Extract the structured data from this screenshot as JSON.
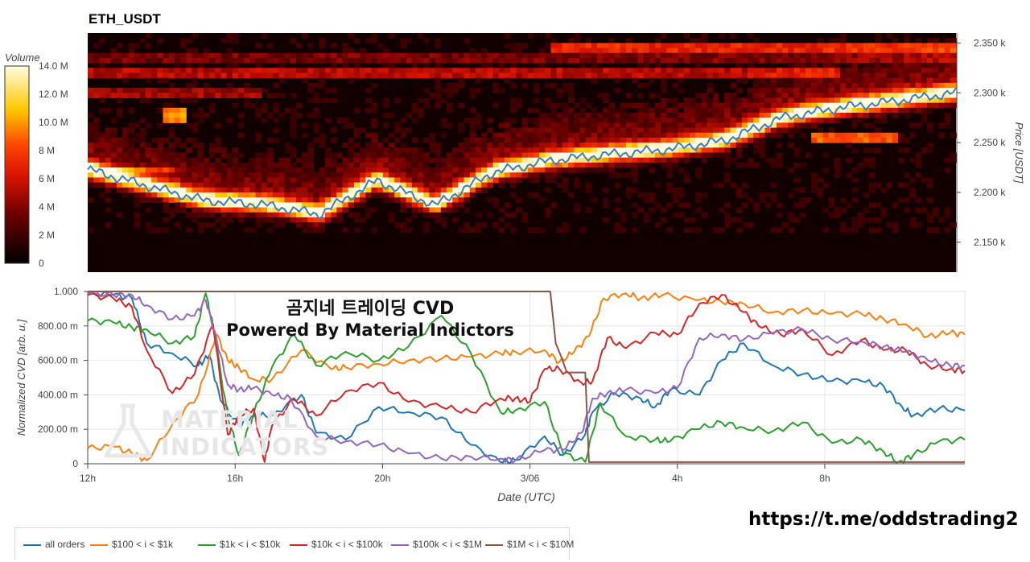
{
  "title": "ETH_USDT",
  "overlay_title": "곰지네 트레이딩 CVD",
  "overlay_subtitle": "Powered By Material Indictors",
  "watermark": {
    "line1": "MATERIAL",
    "line2": "INDICATORS"
  },
  "link": "https://t.me/oddstrading2",
  "colors": {
    "heat_low": "#000000",
    "heat_mid": "#ff2a00",
    "heat_high": "#fffbe0"
  },
  "chart_data": [
    {
      "type": "heatmap",
      "title": "ETH_USDT",
      "ylabel": "Price [USDT]",
      "colorbar_label": "Volume",
      "colorbar_ticks": [
        "0",
        "2 M",
        "4 M",
        "6 M",
        "8 M",
        "10.0 M",
        "12.0 M",
        "14.0 M"
      ],
      "colorbar_range": [
        0,
        14
      ],
      "y_ticks": [
        "2.150 k",
        "2.200 k",
        "2.250 k",
        "2.300 k",
        "2.350 k"
      ],
      "y_tick_values": [
        2150,
        2200,
        2250,
        2300,
        2350
      ],
      "ylim": [
        2120,
        2360
      ],
      "price_line": {
        "color": "#3a7fc1",
        "x": [
          0,
          2,
          4,
          6,
          8,
          10,
          12,
          14,
          16,
          18,
          20,
          22,
          24,
          26,
          28,
          30
        ],
        "y": [
          2223,
          2207,
          2192,
          2188,
          2178,
          2212,
          2187,
          2220,
          2232,
          2238,
          2243,
          2252,
          2275,
          2285,
          2292,
          2300
        ]
      },
      "x_start_hour": 12
    },
    {
      "type": "line",
      "ylabel": "Normalized CVD [arb. u.]",
      "xlabel": "Date (UTC)",
      "ylim": [
        0,
        1
      ],
      "y_ticks": [
        "0",
        "200.00 m",
        "400.00 m",
        "600.00 m",
        "800.00 m",
        "1.000"
      ],
      "y_tick_values": [
        0,
        0.2,
        0.4,
        0.6,
        0.8,
        1.0
      ],
      "x_ticks": [
        "12h",
        "16h",
        "20h",
        "3/06",
        "4h",
        "8h"
      ],
      "x_tick_values": [
        0,
        4,
        8,
        12,
        16,
        20
      ],
      "xlim": [
        0,
        23.8
      ],
      "legend": "bottom-left",
      "series": [
        {
          "name": "all orders",
          "color": "#1f77b4",
          "x": [
            0,
            0.7,
            1.2,
            1.6,
            2.3,
            3.0,
            3.3,
            3.6,
            4.1,
            4.5,
            5.0,
            5.8,
            6.2,
            7.0,
            7.9,
            8.7,
            9.6,
            10.4,
            11.2,
            11.6,
            12.4,
            12.9,
            13.5,
            13.7,
            14.3,
            15.0,
            15.4,
            15.8,
            16.6,
            17.2,
            17.8,
            18.6,
            19.4,
            20.2,
            21.0,
            21.6,
            22.1,
            22.4,
            23.1,
            23.8
          ],
          "y": [
            0.99,
            0.98,
            0.96,
            0.7,
            0.64,
            0.57,
            0.63,
            0.37,
            0.22,
            0.28,
            0.28,
            0.4,
            0.18,
            0.14,
            0.33,
            0.3,
            0.27,
            0.11,
            0.01,
            0.02,
            0.16,
            0.05,
            0.17,
            0.3,
            0.41,
            0.38,
            0.33,
            0.43,
            0.4,
            0.6,
            0.7,
            0.57,
            0.52,
            0.48,
            0.48,
            0.45,
            0.33,
            0.28,
            0.32,
            0.31
          ]
        },
        {
          "name": "$100 < i < $1k",
          "color": "#ff7f0e",
          "x": [
            0,
            0.7,
            1.2,
            1.6,
            2.3,
            3.0,
            3.5,
            3.8,
            4.1,
            4.5,
            5.0,
            5.8,
            6.6,
            7.0,
            7.9,
            8.7,
            9.6,
            10.4,
            11.2,
            11.6,
            12.4,
            12.8,
            13.2,
            13.6,
            14.0,
            14.6,
            15.0,
            15.6,
            16.5,
            17.2,
            17.8,
            18.6,
            19.4,
            20.2,
            21.0,
            21.6,
            22.2,
            22.8,
            23.4,
            23.8
          ],
          "y": [
            0.09,
            0.1,
            0.06,
            0.02,
            0.23,
            0.4,
            0.75,
            0.6,
            0.56,
            0.49,
            0.49,
            0.66,
            0.55,
            0.56,
            0.58,
            0.6,
            0.61,
            0.62,
            0.64,
            0.65,
            0.66,
            0.59,
            0.65,
            0.74,
            0.96,
            0.99,
            0.96,
            0.98,
            0.95,
            0.94,
            0.93,
            0.88,
            0.89,
            0.87,
            0.87,
            0.84,
            0.81,
            0.74,
            0.76,
            0.75
          ]
        },
        {
          "name": "$1k < i < $10k",
          "color": "#2ca02c",
          "x": [
            0,
            0.7,
            1.2,
            1.6,
            2.3,
            2.9,
            3.2,
            3.4,
            3.8,
            4.1,
            4.5,
            5.0,
            5.6,
            6.2,
            7.0,
            7.9,
            8.7,
            9.6,
            10.4,
            11.2,
            11.6,
            12.4,
            12.9,
            13.5,
            13.9,
            14.6,
            15.4,
            15.8,
            16.5,
            17.2,
            17.8,
            18.6,
            19.4,
            20.2,
            21.0,
            21.6,
            22.0,
            22.4,
            23.1,
            23.8
          ],
          "y": [
            0.83,
            0.82,
            0.79,
            0.78,
            0.7,
            0.74,
            0.99,
            0.8,
            0.28,
            0.05,
            0.29,
            0.56,
            0.75,
            0.57,
            0.65,
            0.6,
            0.68,
            0.86,
            0.64,
            0.3,
            0.31,
            0.36,
            0.06,
            0.01,
            0.35,
            0.16,
            0.14,
            0.13,
            0.2,
            0.24,
            0.21,
            0.19,
            0.24,
            0.12,
            0.14,
            0.07,
            0.01,
            0.05,
            0.13,
            0.14
          ]
        },
        {
          "name": "$10k < i < $100k",
          "color": "#d62728",
          "x": [
            0,
            0.7,
            1.2,
            1.6,
            2.3,
            2.9,
            3.4,
            3.8,
            4.1,
            4.5,
            4.8,
            5.0,
            5.6,
            6.2,
            7.0,
            7.9,
            8.7,
            9.6,
            10.4,
            11.2,
            11.6,
            12.0,
            12.4,
            12.8,
            13.4,
            13.7,
            14.1,
            14.6,
            15.4,
            16.0,
            16.6,
            17.2,
            17.8,
            18.2,
            18.8,
            19.4,
            20.2,
            21.0,
            21.6,
            22.2,
            22.8,
            23.4,
            23.8
          ],
          "y": [
            0.98,
            0.96,
            0.91,
            0.66,
            0.41,
            0.52,
            0.81,
            0.17,
            0.28,
            0.32,
            0.01,
            0.22,
            0.38,
            0.28,
            0.42,
            0.47,
            0.36,
            0.33,
            0.3,
            0.38,
            0.38,
            0.36,
            0.55,
            0.55,
            0.47,
            0.48,
            0.73,
            0.67,
            0.76,
            0.75,
            0.93,
            0.98,
            0.88,
            0.8,
            0.75,
            0.78,
            0.63,
            0.72,
            0.66,
            0.66,
            0.57,
            0.55,
            0.54
          ]
        },
        {
          "name": "$100k < i < $1M",
          "color": "#9467bd",
          "x": [
            0,
            0.7,
            1.2,
            1.6,
            2.3,
            2.9,
            3.2,
            3.5,
            3.8,
            4.1,
            4.5,
            5.0,
            5.5,
            6.2,
            7.0,
            7.9,
            8.7,
            9.6,
            10.4,
            11.2,
            11.6,
            12.4,
            12.9,
            13.4,
            13.7,
            14.1,
            14.6,
            15.4,
            16.0,
            16.6,
            17.2,
            17.8,
            18.6,
            19.4,
            20.2,
            21.0,
            21.6,
            22.2,
            22.8,
            23.4,
            23.8
          ],
          "y": [
            0.99,
            0.98,
            0.98,
            0.92,
            0.84,
            0.86,
            0.95,
            0.72,
            0.46,
            0.43,
            0.44,
            0.4,
            0.38,
            0.16,
            0.13,
            0.11,
            0.06,
            0.03,
            0.04,
            0.03,
            0.02,
            0.08,
            0.08,
            0.18,
            0.38,
            0.41,
            0.43,
            0.41,
            0.44,
            0.73,
            0.75,
            0.72,
            0.76,
            0.78,
            0.72,
            0.71,
            0.68,
            0.65,
            0.6,
            0.57,
            0.57
          ]
        },
        {
          "name": "$1M < i < $10M",
          "color": "#8c564b",
          "x": [
            0,
            12.55,
            12.7,
            12.85,
            13.0,
            13.35,
            13.5,
            13.6,
            23.8
          ],
          "y": [
            1.0,
            1.0,
            0.7,
            0.62,
            0.53,
            0.53,
            0.53,
            0.01,
            0.01
          ]
        }
      ]
    }
  ]
}
